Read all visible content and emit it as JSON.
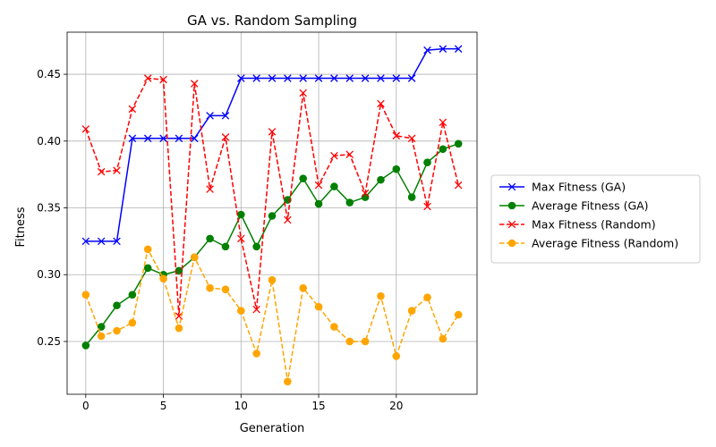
{
  "chart_data": {
    "type": "line",
    "title": "GA vs. Random Sampling",
    "xlabel": "Generation",
    "ylabel": "Fitness",
    "xlim": [
      -1.2,
      25.2
    ],
    "ylim": [
      0.2105,
      0.4815
    ],
    "xticks": [
      0,
      5,
      10,
      15,
      20
    ],
    "yticks": [
      0.25,
      0.3,
      0.35,
      0.4,
      0.45
    ],
    "xtick_labels": [
      "0",
      "5",
      "10",
      "15",
      "20"
    ],
    "ytick_labels": [
      "0.25",
      "0.30",
      "0.35",
      "0.40",
      "0.45"
    ],
    "grid": true,
    "legend_position": "outside-right",
    "x": [
      0,
      1,
      2,
      3,
      4,
      5,
      6,
      7,
      8,
      9,
      10,
      11,
      12,
      13,
      14,
      15,
      16,
      17,
      18,
      19,
      20,
      21,
      22,
      23,
      24
    ],
    "series": [
      {
        "name": "Max Fitness (GA)",
        "color": "#0000ff",
        "line_style": "solid",
        "marker": "x",
        "values": [
          0.325,
          0.325,
          0.325,
          0.402,
          0.402,
          0.402,
          0.402,
          0.402,
          0.419,
          0.419,
          0.447,
          0.447,
          0.447,
          0.447,
          0.447,
          0.447,
          0.447,
          0.447,
          0.447,
          0.447,
          0.447,
          0.447,
          0.468,
          0.469,
          0.469
        ]
      },
      {
        "name": "Average Fitness (GA)",
        "color": "#008000",
        "line_style": "solid",
        "marker": "o",
        "values": [
          0.247,
          0.261,
          0.277,
          0.285,
          0.305,
          0.3,
          0.303,
          0.313,
          0.327,
          0.321,
          0.345,
          0.321,
          0.344,
          0.356,
          0.372,
          0.353,
          0.366,
          0.354,
          0.358,
          0.371,
          0.379,
          0.358,
          0.384,
          0.394,
          0.398
        ]
      },
      {
        "name": "Max Fitness (Random)",
        "color": "#ff0000",
        "line_style": "dashed",
        "marker": "x",
        "values": [
          0.409,
          0.377,
          0.378,
          0.424,
          0.447,
          0.446,
          0.269,
          0.443,
          0.364,
          0.403,
          0.327,
          0.274,
          0.407,
          0.341,
          0.436,
          0.367,
          0.389,
          0.39,
          0.361,
          0.428,
          0.404,
          0.402,
          0.351,
          0.414,
          0.367
        ]
      },
      {
        "name": "Average Fitness (Random)",
        "color": "#ffa500",
        "line_style": "dashed",
        "marker": "o",
        "values": [
          0.285,
          0.254,
          0.258,
          0.264,
          0.319,
          0.297,
          0.26,
          0.313,
          0.29,
          0.289,
          0.273,
          0.241,
          0.296,
          0.22,
          0.29,
          0.276,
          0.261,
          0.25,
          0.25,
          0.284,
          0.239,
          0.273,
          0.283,
          0.252,
          0.27
        ]
      }
    ]
  }
}
